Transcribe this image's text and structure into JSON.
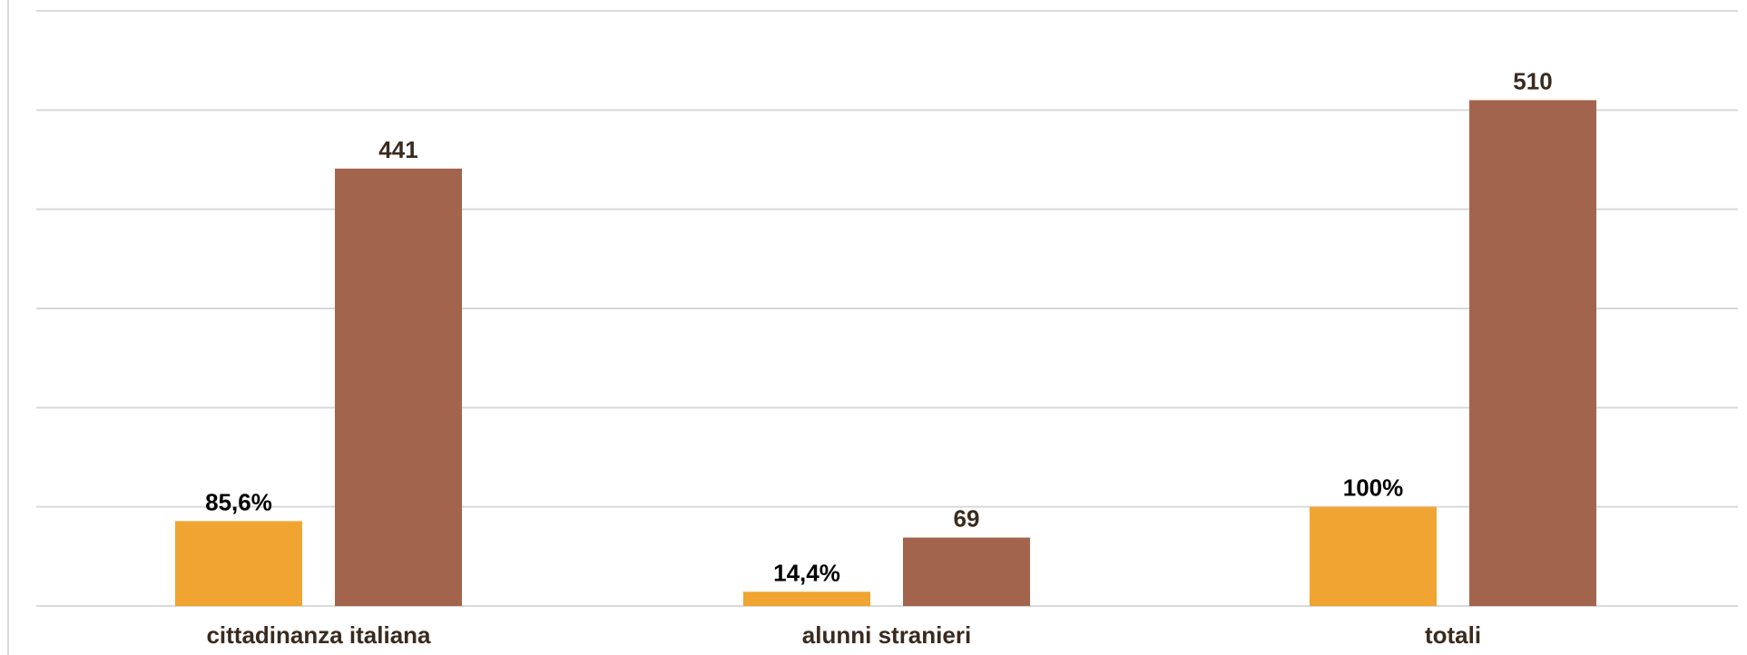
{
  "chart_data": {
    "type": "bar",
    "categories": [
      "cittadinanza italiana",
      "alunni stranieri",
      "totali"
    ],
    "series": [
      {
        "values": [
          85.6,
          14.4,
          100
        ],
        "labels": [
          "85,6%",
          "14,4%",
          "100%"
        ],
        "color": "#f0a431",
        "label_color": "#000000"
      },
      {
        "values": [
          441,
          69,
          510
        ],
        "labels": [
          "441",
          "69",
          "510"
        ],
        "color": "#a3644d",
        "label_color": "#3a2a1e"
      }
    ],
    "title": "",
    "xlabel": "",
    "ylabel": "",
    "ylim": [
      0,
      600
    ],
    "grid": true,
    "legend": "none"
  }
}
